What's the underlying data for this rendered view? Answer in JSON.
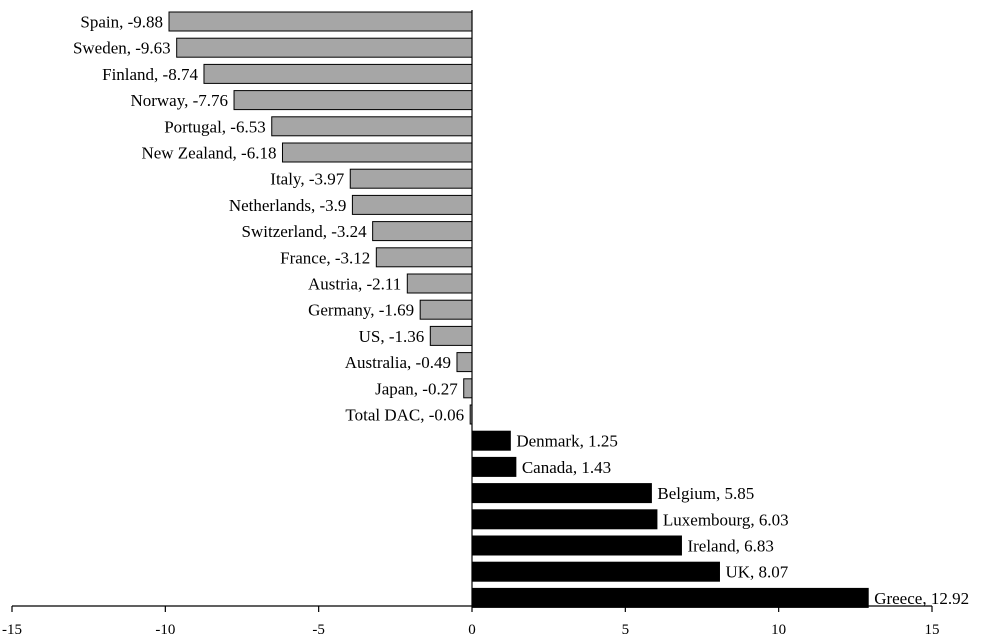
{
  "chart_data": {
    "type": "bar",
    "orientation": "horizontal",
    "categories": [
      "Spain",
      "Sweden",
      "Finland",
      "Norway",
      "Portugal",
      "New Zealand",
      "Italy",
      "Netherlands",
      "Switzerland",
      "France",
      "Austria",
      "Germany",
      "US",
      "Australia",
      "Japan",
      "Total DAC",
      "Denmark",
      "Canada",
      "Belgium",
      "Luxembourg",
      "Ireland",
      "UK",
      "Greece"
    ],
    "values": [
      -9.88,
      -9.63,
      -8.74,
      -7.76,
      -6.53,
      -6.18,
      -3.97,
      -3.9,
      -3.24,
      -3.12,
      -2.11,
      -1.69,
      -1.36,
      -0.49,
      -0.27,
      -0.06,
      1.25,
      1.43,
      5.85,
      6.03,
      6.83,
      8.07,
      12.92
    ],
    "data_labels": [
      "Spain, -9.88",
      "Sweden, -9.63",
      "Finland, -8.74",
      "Norway, -7.76",
      "Portugal, -6.53",
      "New Zealand, -6.18",
      "Italy, -3.97",
      "Netherlands, -3.9",
      "Switzerland, -3.24",
      "France, -3.12",
      "Austria, -2.11",
      "Germany, -1.69",
      "US, -1.36",
      "Australia, -0.49",
      "Japan, -0.27",
      "Total DAC, -0.06",
      "Denmark, 1.25",
      "Canada, 1.43",
      "Belgium, 5.85",
      "Luxembourg, 6.03",
      "Ireland, 6.83",
      "UK, 8.07",
      "Greece, 12.92"
    ],
    "xlim": [
      -15,
      15
    ],
    "x_ticks": [
      -15,
      -10,
      -5,
      0,
      5,
      10,
      15
    ],
    "x_tick_labels": [
      "-15",
      "-10",
      "-5",
      "0",
      "5",
      "10",
      "15"
    ],
    "title": "",
    "xlabel": "",
    "ylabel": "",
    "grid": false,
    "legend": "none",
    "colors": {
      "negative": "#a6a6a6",
      "positive": "#000000",
      "outline": "#000000"
    }
  }
}
